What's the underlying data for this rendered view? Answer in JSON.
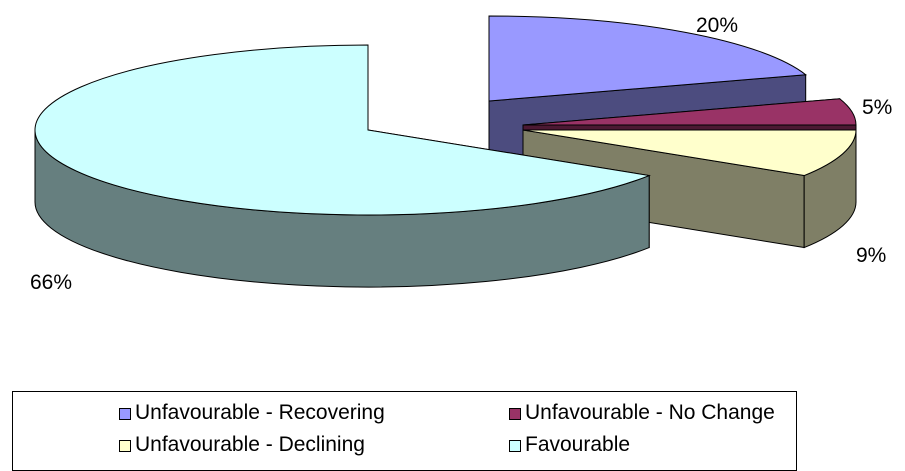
{
  "chart_data": {
    "type": "pie",
    "style": "3d-exploded",
    "slices": [
      {
        "name": "Unfavourable - Recovering",
        "value": 20,
        "label": "20%",
        "color": "#9999ff",
        "side": "#4c4c7f"
      },
      {
        "name": "Unfavourable - No Change",
        "value": 5,
        "label": "5%",
        "color": "#993366",
        "side": "#4c1933"
      },
      {
        "name": "Unfavourable - Declining",
        "value": 9,
        "label": "9%",
        "color": "#ffffcc",
        "side": "#7f7f66"
      },
      {
        "name": "Favourable",
        "value": 66,
        "label": "66%",
        "color": "#ccffff",
        "side": "#667f7f"
      }
    ],
    "legend": {
      "placement": "bottom",
      "entries": [
        "Unfavourable - Recovering",
        "Unfavourable - No Change",
        "Unfavourable - Declining",
        "Favourable"
      ]
    }
  }
}
